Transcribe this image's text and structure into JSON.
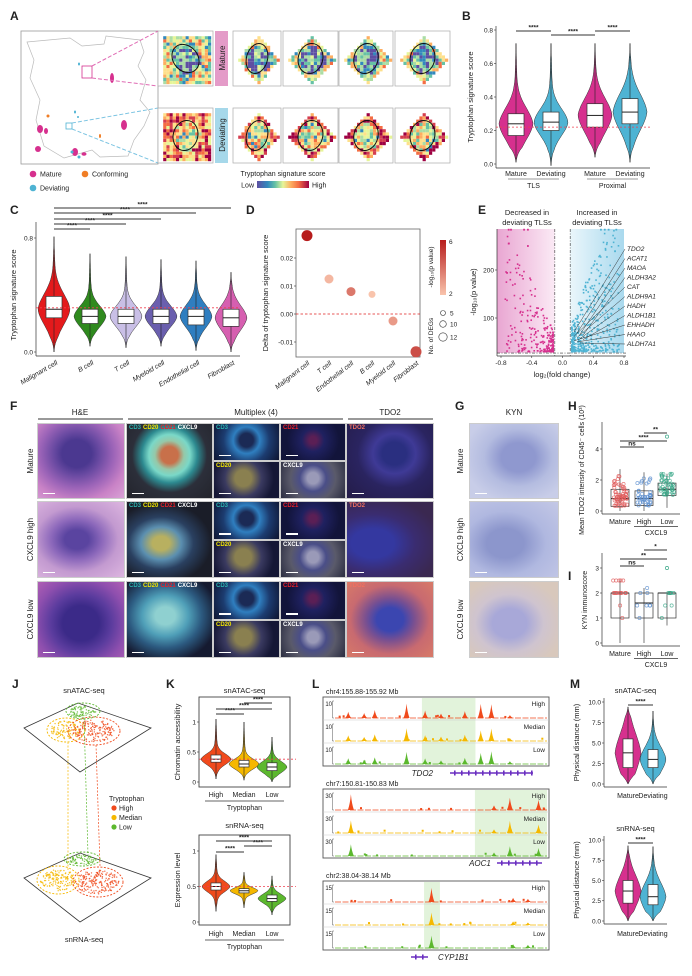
{
  "panel_letters": [
    "A",
    "B",
    "C",
    "D",
    "E",
    "F",
    "G",
    "H",
    "I",
    "J",
    "K",
    "L",
    "M"
  ],
  "panel_a": {
    "row_labels": [
      "Mature",
      "Deviating"
    ],
    "legend": [
      {
        "label": "Mature",
        "color": "#d6308e"
      },
      {
        "label": "Conforming",
        "color": "#f07e26"
      },
      {
        "label": "Deviating",
        "color": "#4eb3d3"
      }
    ],
    "colorbar": {
      "title": "Tryptophan signature score",
      "low": "Low",
      "high": "High"
    },
    "row_colors": {
      "mature": "#e49bc8",
      "deviating": "#a6d8ea"
    }
  },
  "panel_f": {
    "headers": [
      "H&E",
      "Multiplex (4)",
      "TDO2"
    ],
    "row_labels": [
      "Mature",
      "CXCL9 high",
      "CXCL9 low"
    ],
    "markers": {
      "cd3": "CD3",
      "cd20": "CD20",
      "cd21": "CD21",
      "cxcl9": "CXCL9",
      "tdo2": "TDO2"
    },
    "marker_colors": {
      "cd3": "#2ab5b0",
      "cd20": "#f3e600",
      "cd21": "#e8202a",
      "cxcl9": "#ffffff",
      "tdo2": "#f07060"
    }
  },
  "panel_g": {
    "header": "KYN",
    "row_labels": [
      "Mature",
      "CXCL9 high",
      "CXCL9 low"
    ]
  },
  "panel_j": {
    "top_title": "snATAC-seq",
    "bottom_title": "snRNA-seq",
    "legend_title": "Tryptophan",
    "legend": [
      {
        "label": "High",
        "color": "#f04a1c"
      },
      {
        "label": "Median",
        "color": "#f5b800"
      },
      {
        "label": "Low",
        "color": "#5cb82e"
      }
    ]
  },
  "chart_data": [
    {
      "panel": "B",
      "type": "violin",
      "title": "",
      "xlabel": "",
      "ylabel": "Tryptophan signature score",
      "ylim": [
        0,
        0.8
      ],
      "yticks": [
        "0.0",
        "0.2",
        "0.4",
        "0.6",
        "0.8"
      ],
      "categories": [
        "Mature",
        "Deviating",
        "Mature",
        "Deviating"
      ],
      "groups": [
        {
          "label": "TLS",
          "members": [
            0,
            1
          ]
        },
        {
          "label": "Proximal",
          "members": [
            2,
            3
          ]
        }
      ],
      "colors": [
        "#d6308e",
        "#4eb3d3",
        "#d6308e",
        "#4eb3d3"
      ],
      "reference_line": 0.22,
      "stats": [
        {
          "min": 0.01,
          "q1": 0.17,
          "median": 0.24,
          "q3": 0.3,
          "max": 0.72
        },
        {
          "min": -0.01,
          "q1": 0.2,
          "median": 0.25,
          "q3": 0.31,
          "max": 0.72
        },
        {
          "min": 0.04,
          "q1": 0.22,
          "median": 0.29,
          "q3": 0.36,
          "max": 0.72
        },
        {
          "min": 0.01,
          "q1": 0.24,
          "median": 0.31,
          "q3": 0.39,
          "max": 0.72
        }
      ],
      "significance": [
        {
          "from": 0,
          "to": 1,
          "label": "****"
        },
        {
          "from": 1,
          "to": 2,
          "label": "****"
        },
        {
          "from": 2,
          "to": 3,
          "label": "****"
        }
      ]
    },
    {
      "panel": "C",
      "type": "violin",
      "title": "",
      "xlabel": "",
      "ylabel": "Tryptophan signature score",
      "ylim": [
        0,
        0.8
      ],
      "yticks": [
        "0.0",
        "0.8"
      ],
      "categories": [
        "Malignant cell",
        "B cell",
        "T cell",
        "Myeloid cell",
        "Endothelial cell",
        "Fibroblast"
      ],
      "colors": [
        "#e41a1c",
        "#2f8a1e",
        "#c9bfe6",
        "#6a5fae",
        "#2f7ec0",
        "#d65fb0"
      ],
      "reference_line": 0.31,
      "stats": [
        {
          "min": 0.0,
          "q1": 0.24,
          "median": 0.3,
          "q3": 0.39,
          "max": 0.81
        },
        {
          "min": 0.04,
          "q1": 0.2,
          "median": 0.25,
          "q3": 0.3,
          "max": 0.69
        },
        {
          "min": 0.03,
          "q1": 0.2,
          "median": 0.25,
          "q3": 0.3,
          "max": 0.67
        },
        {
          "min": 0.04,
          "q1": 0.2,
          "median": 0.25,
          "q3": 0.3,
          "max": 0.65
        },
        {
          "min": 0.01,
          "q1": 0.19,
          "median": 0.25,
          "q3": 0.3,
          "max": 0.64
        },
        {
          "min": 0.0,
          "q1": 0.18,
          "median": 0.24,
          "q3": 0.3,
          "max": 0.56
        }
      ],
      "significance": [
        {
          "from": 0,
          "to": 1,
          "label": "****"
        },
        {
          "from": 0,
          "to": 2,
          "label": "****"
        },
        {
          "from": 0,
          "to": 3,
          "label": "****"
        },
        {
          "from": 0,
          "to": 4,
          "label": "****"
        },
        {
          "from": 0,
          "to": 5,
          "label": "****"
        }
      ]
    },
    {
      "panel": "D",
      "type": "scatter",
      "title": "",
      "xlabel": "",
      "ylabel": "Delta of tryptophan signature score",
      "ylim": [
        -0.016,
        0.03
      ],
      "yticks": [
        {
          "v": -0.01,
          "label": "-0.01"
        },
        {
          "v": 0,
          "label": "0.00"
        },
        {
          "v": 0.01,
          "label": "0.01"
        },
        {
          "v": 0.02,
          "label": "0.02"
        }
      ],
      "categories": [
        "Malignant cell",
        "T cell",
        "Endothelial cell",
        "B cell",
        "Myeloid cell",
        "Fibroblast"
      ],
      "values": [
        0.028,
        0.0125,
        0.008,
        0.007,
        -0.0025,
        -0.0135
      ],
      "neg_log10_p": [
        6,
        2.3,
        3.8,
        2.0,
        3.0,
        4.8
      ],
      "n_degs": [
        12,
        10,
        10,
        5,
        10,
        12
      ],
      "reference_line": 0,
      "color_legend": {
        "title": "-log₁₀(p value)",
        "min": 2,
        "max": 6,
        "ticks": [
          "2",
          "6"
        ],
        "low_color": "#f9c4ac",
        "high_color": "#b71c1c"
      },
      "size_legend": {
        "title": "No. of DEGs",
        "values": [
          "5",
          "10",
          "12"
        ]
      }
    },
    {
      "panel": "E",
      "type": "scatter",
      "title": "",
      "xlabel": "log₂(fold change)",
      "ylabel": "-log₁₀(p value)",
      "xlim": [
        -0.85,
        0.8
      ],
      "xticks": [
        {
          "v": -0.8,
          "label": "-0.8"
        },
        {
          "v": -0.4,
          "label": "-0.4"
        },
        {
          "v": 0,
          "label": "0.0"
        },
        {
          "v": 0.4,
          "label": "0.4"
        },
        {
          "v": 0.8,
          "label": "0.8"
        }
      ],
      "ylim": [
        27,
        290
      ],
      "yticks": [
        {
          "v": 100,
          "label": "100"
        },
        {
          "v": 200,
          "label": "200"
        }
      ],
      "thresholds": {
        "x": [
          -0.1,
          0.1
        ],
        "y": 27
      },
      "annotations": {
        "left": [
          "Decreased in",
          "deviating TLSs"
        ],
        "right": [
          "Increased in",
          "deviating TLSs"
        ]
      },
      "series": [
        {
          "color": "#d6308e",
          "direction": "down"
        },
        {
          "color": "#4eb3d3",
          "direction": "up"
        }
      ],
      "labeled_genes": [
        "TDO2",
        "ACAT1",
        "MAOA",
        "ALDH3A2",
        "CAT",
        "ALDH9A1",
        "HADH",
        "ALDH1B1",
        "EHHADH",
        "HAAO",
        "ALDH7A1"
      ]
    },
    {
      "panel": "H",
      "type": "box",
      "title": "",
      "ylabel": "Mean TDO2 intensity of CD45⁻ cells (10³)",
      "ylim": [
        -0.3,
        5.5
      ],
      "yticks": [
        {
          "v": 0,
          "label": "0"
        },
        {
          "v": 2,
          "label": "2"
        },
        {
          "v": 4,
          "label": "4"
        }
      ],
      "categories": [
        "Mature",
        "High",
        "Low"
      ],
      "group_label": "CXCL9",
      "colors": [
        "#e05a5a",
        "#5b8fd0",
        "#3aa888"
      ],
      "stats": [
        {
          "min": 0.0,
          "q1": 0.3,
          "median": 0.8,
          "q3": 1.4,
          "max": 2.7
        },
        {
          "min": 0.0,
          "q1": 0.35,
          "median": 0.8,
          "q3": 1.3,
          "max": 2.5
        },
        {
          "min": 0.2,
          "q1": 1.0,
          "median": 1.4,
          "q3": 1.8,
          "max": 2.4,
          "outlier": 4.8
        }
      ],
      "significance": [
        {
          "from": 0,
          "to": 1,
          "label": "ns"
        },
        {
          "from": 0,
          "to": 2,
          "label": "****"
        },
        {
          "from": 1,
          "to": 2,
          "label": "**"
        }
      ]
    },
    {
      "panel": "I",
      "type": "box",
      "title": "",
      "ylabel": "KYN immunoscore",
      "ylim": [
        -0.2,
        3.7
      ],
      "yticks": [
        {
          "v": 0,
          "label": "0"
        },
        {
          "v": 1,
          "label": "1"
        },
        {
          "v": 2,
          "label": "2"
        },
        {
          "v": 3,
          "label": "3"
        }
      ],
      "categories": [
        "Mature",
        "High",
        "Low"
      ],
      "group_label": "CXCL9",
      "colors": [
        "#e05a5a",
        "#5b8fd0",
        "#3aa888"
      ],
      "stats": [
        {
          "min": 0,
          "q1": 1.0,
          "median": 2.0,
          "q3": 2.0,
          "max": 2.5
        },
        {
          "min": 0,
          "q1": 1.0,
          "median": 1.6,
          "q3": 2.0,
          "max": 2.2
        },
        {
          "min": 0.7,
          "q1": 1.0,
          "median": 2.0,
          "q3": 2.0,
          "max": 2.0,
          "outlier": 3.0
        }
      ],
      "significance": [
        {
          "from": 0,
          "to": 1,
          "label": "ns"
        },
        {
          "from": 0,
          "to": 2,
          "label": "**"
        },
        {
          "from": 1,
          "to": 2,
          "label": "*"
        }
      ]
    },
    {
      "panel": "K",
      "type": "violin",
      "title": "snATAC-seq",
      "ylabel": "Chromatin accessibility",
      "ylim": [
        -0.05,
        1.35
      ],
      "yticks": [
        {
          "v": 0,
          "label": "0"
        },
        {
          "v": 0.5,
          "label": "0.5"
        },
        {
          "v": 1,
          "label": "1"
        }
      ],
      "categories": [
        "High",
        "Median",
        "Low"
      ],
      "group_label": "Tryptophan",
      "colors": [
        "#f04a1c",
        "#f5b800",
        "#5cb82e"
      ],
      "reference_line": 0.38,
      "stats": [
        {
          "min": 0.05,
          "q1": 0.33,
          "median": 0.38,
          "q3": 0.45,
          "max": 1.05
        },
        {
          "min": 0.03,
          "q1": 0.25,
          "median": 0.3,
          "q3": 0.36,
          "max": 1.0
        },
        {
          "min": 0.0,
          "q1": 0.19,
          "median": 0.25,
          "q3": 0.32,
          "max": 0.75
        }
      ],
      "significance": [
        {
          "from": 0,
          "to": 1,
          "label": "****"
        },
        {
          "from": 0,
          "to": 2,
          "label": "****"
        },
        {
          "from": 1,
          "to": 2,
          "label": "****"
        }
      ]
    },
    {
      "panel": "K",
      "type": "violin",
      "title": "snRNA-seq",
      "ylabel": "Expression level",
      "ylim": [
        -0.05,
        1.2
      ],
      "yticks": [
        {
          "v": 0,
          "label": "0"
        },
        {
          "v": 0.5,
          "label": "0.5"
        },
        {
          "v": 1,
          "label": "1"
        }
      ],
      "categories": [
        "High",
        "Median",
        "Low"
      ],
      "group_label": "Tryptophan",
      "colors": [
        "#f04a1c",
        "#f5b800",
        "#5cb82e"
      ],
      "reference_line": 0.5,
      "stats": [
        {
          "min": 0.15,
          "q1": 0.45,
          "median": 0.5,
          "q3": 0.55,
          "max": 0.95
        },
        {
          "min": 0.2,
          "q1": 0.41,
          "median": 0.44,
          "q3": 0.47,
          "max": 0.7
        },
        {
          "min": 0.1,
          "q1": 0.29,
          "median": 0.33,
          "q3": 0.38,
          "max": 0.65
        }
      ],
      "significance": [
        {
          "from": 0,
          "to": 1,
          "label": "****"
        },
        {
          "from": 1,
          "to": 2,
          "label": "****"
        },
        {
          "from": 0,
          "to": 2,
          "label": "****"
        }
      ]
    },
    {
      "panel": "M",
      "type": "violin",
      "title": "snATAC-seq",
      "ylabel": "Physical distance (mm)",
      "ylim": [
        -0.3,
        10.5
      ],
      "yticks": [
        {
          "v": 0,
          "label": "0.0"
        },
        {
          "v": 2.5,
          "label": "2.5"
        },
        {
          "v": 5,
          "label": "5.0"
        },
        {
          "v": 7.5,
          "label": "7.5"
        },
        {
          "v": 10,
          "label": "10.0"
        }
      ],
      "categories": [
        "Mature",
        "Deviating"
      ],
      "colors": [
        "#d6308e",
        "#4eb3d3"
      ],
      "stats": [
        {
          "min": 0.0,
          "q1": 2.0,
          "median": 3.8,
          "q3": 5.5,
          "max": 9.4
        },
        {
          "min": 0.0,
          "q1": 2.0,
          "median": 3.0,
          "q3": 4.2,
          "max": 8.9
        }
      ],
      "significance": [
        {
          "from": 0,
          "to": 1,
          "label": "****"
        }
      ]
    },
    {
      "panel": "M",
      "type": "violin",
      "title": "snRNA-seq",
      "ylabel": "Physical distance (mm)",
      "ylim": [
        -0.3,
        10.5
      ],
      "yticks": [
        {
          "v": 0,
          "label": "0.0"
        },
        {
          "v": 2.5,
          "label": "2.5"
        },
        {
          "v": 5,
          "label": "5.0"
        },
        {
          "v": 7.5,
          "label": "7.5"
        },
        {
          "v": 10,
          "label": "10.0"
        }
      ],
      "categories": [
        "Mature",
        "Deviating"
      ],
      "colors": [
        "#d6308e",
        "#4eb3d3"
      ],
      "stats": [
        {
          "min": 0.0,
          "q1": 2.2,
          "median": 3.7,
          "q3": 5.0,
          "max": 9.3
        },
        {
          "min": 0.0,
          "q1": 2.0,
          "median": 3.0,
          "q3": 4.5,
          "max": 9.2
        }
      ],
      "significance": [
        {
          "from": 0,
          "to": 1,
          "label": "****"
        }
      ]
    },
    {
      "panel": "L",
      "type": "coverage_tracks",
      "track_labels": [
        "High",
        "Median",
        "Low"
      ],
      "track_colors": [
        "#f04a1c",
        "#f5b800",
        "#5cb82e"
      ],
      "loci": [
        {
          "region": "chr4:155.88-155.92 Mb",
          "start": 155.88,
          "end": 155.92,
          "scale": "10",
          "gene": "TDO2",
          "highlight": [
            155.8964,
            155.9065
          ],
          "peaks": [
            [
              155.8825,
              4
            ],
            [
              155.8855,
              3
            ],
            [
              155.8875,
              5
            ],
            [
              155.8935,
              9
            ],
            [
              155.897,
              4
            ],
            [
              155.9,
              3
            ],
            [
              155.9045,
              4
            ],
            [
              155.9075,
              8
            ],
            [
              155.9095,
              9
            ],
            [
              155.913,
              2
            ]
          ]
        },
        {
          "region": "chr7:150.81-150.83 Mb",
          "start": 150.81,
          "end": 150.83,
          "scale": "30",
          "gene": "AOC1",
          "highlight": [
            150.8232,
            150.83
          ],
          "peaks": [
            [
              150.8115,
              26
            ],
            [
              150.825,
              8
            ],
            [
              150.8265,
              22
            ],
            [
              150.8292,
              16
            ]
          ]
        },
        {
          "region": "chr2:38.04-38.14 Mb",
          "start": 38.04,
          "end": 38.14,
          "scale": "15",
          "gene": "CYP1B1",
          "highlight": [
            38.082,
            38.0895
          ],
          "peaks": [
            [
              38.0855,
              13
            ],
            [
              38.124,
              4
            ],
            [
              38.131,
              3
            ]
          ]
        }
      ]
    }
  ]
}
